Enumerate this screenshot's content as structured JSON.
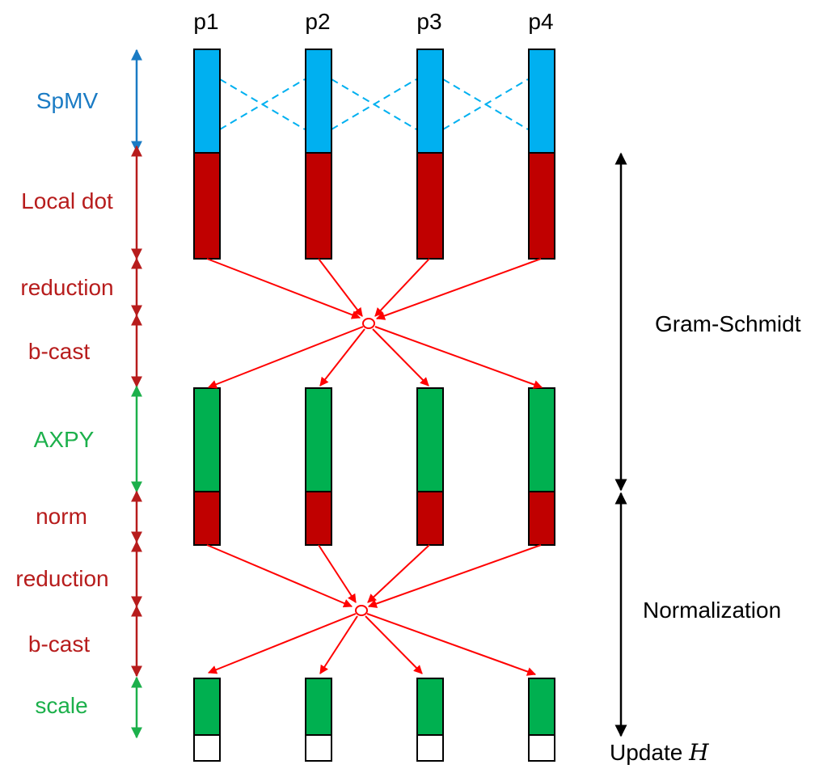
{
  "processes": [
    "p1",
    "p2",
    "p3",
    "p4"
  ],
  "stages": [
    {
      "label": "SpMV",
      "color": "#1a7bc4"
    },
    {
      "label": "Local dot",
      "color": "#b71c1c"
    },
    {
      "label": "reduction",
      "color": "#b71c1c"
    },
    {
      "label": "b-cast",
      "color": "#b71c1c"
    },
    {
      "label": "AXPY",
      "color": "#1cb04b"
    },
    {
      "label": "norm",
      "color": "#b71c1c"
    },
    {
      "label": "reduction",
      "color": "#b71c1c"
    },
    {
      "label": "b-cast",
      "color": "#b71c1c"
    },
    {
      "label": "scale",
      "color": "#1cb04b"
    }
  ],
  "phases": [
    {
      "label": "Gram-Schmidt"
    },
    {
      "label": "Normalization"
    }
  ],
  "update": {
    "label": "Update ",
    "symbol": "H"
  },
  "colors": {
    "spmv_fill": "#00b0f0",
    "dot_fill": "#c00000",
    "axpy_fill": "#00b050",
    "comm_line": "#ff0000",
    "spmv_exchange": "#00b0f0",
    "outline": "#000000"
  }
}
